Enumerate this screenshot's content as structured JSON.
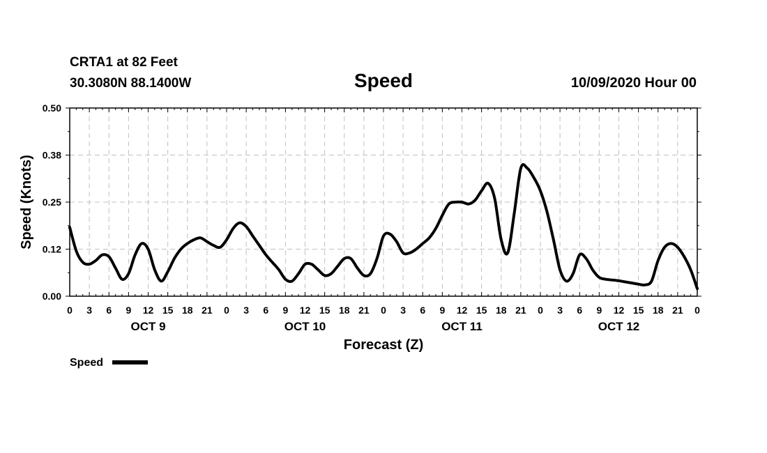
{
  "header": {
    "station": "CRTA1 at 82 Feet",
    "location": "30.3080N 88.1400W",
    "title": "Speed",
    "run": "10/09/2020 Hour 00"
  },
  "legend": {
    "label": "Speed"
  },
  "colors": {
    "line": "#000000",
    "grid": "#c0c0c0",
    "background": "#ffffff"
  },
  "chart_data": {
    "type": "line",
    "title": "Speed",
    "xlabel": "Forecast (Z)",
    "ylabel": "Speed (Knots)",
    "xlim": [
      0,
      96
    ],
    "ylim": [
      0,
      0.5
    ],
    "grid": true,
    "legend_position": "bottom-left",
    "y_ticks": [
      {
        "value": 0.0,
        "label": "0.00"
      },
      {
        "value": 0.125,
        "label": "0.12"
      },
      {
        "value": 0.25,
        "label": "0.25"
      },
      {
        "value": 0.375,
        "label": "0.38"
      },
      {
        "value": 0.5,
        "label": "0.50"
      }
    ],
    "x_ticks": [
      {
        "value": 0,
        "label": "0"
      },
      {
        "value": 3,
        "label": "3"
      },
      {
        "value": 6,
        "label": "6"
      },
      {
        "value": 9,
        "label": "9"
      },
      {
        "value": 12,
        "label": "12"
      },
      {
        "value": 15,
        "label": "15"
      },
      {
        "value": 18,
        "label": "18"
      },
      {
        "value": 21,
        "label": "21"
      },
      {
        "value": 24,
        "label": "0"
      },
      {
        "value": 27,
        "label": "3"
      },
      {
        "value": 30,
        "label": "6"
      },
      {
        "value": 33,
        "label": "9"
      },
      {
        "value": 36,
        "label": "12"
      },
      {
        "value": 39,
        "label": "15"
      },
      {
        "value": 42,
        "label": "18"
      },
      {
        "value": 45,
        "label": "21"
      },
      {
        "value": 48,
        "label": "0"
      },
      {
        "value": 51,
        "label": "3"
      },
      {
        "value": 54,
        "label": "6"
      },
      {
        "value": 57,
        "label": "9"
      },
      {
        "value": 60,
        "label": "12"
      },
      {
        "value": 63,
        "label": "15"
      },
      {
        "value": 66,
        "label": "18"
      },
      {
        "value": 69,
        "label": "21"
      },
      {
        "value": 72,
        "label": "0"
      },
      {
        "value": 75,
        "label": "3"
      },
      {
        "value": 78,
        "label": "6"
      },
      {
        "value": 81,
        "label": "9"
      },
      {
        "value": 84,
        "label": "12"
      },
      {
        "value": 87,
        "label": "15"
      },
      {
        "value": 90,
        "label": "18"
      },
      {
        "value": 93,
        "label": "21"
      },
      {
        "value": 96,
        "label": "0"
      }
    ],
    "day_labels": [
      {
        "value": 12,
        "label": "OCT 9"
      },
      {
        "value": 36,
        "label": "OCT 10"
      },
      {
        "value": 60,
        "label": "OCT 11"
      },
      {
        "value": 84,
        "label": "OCT 12"
      }
    ],
    "series": [
      {
        "name": "Speed",
        "x": [
          0,
          1,
          2,
          3,
          4,
          5,
          6,
          7,
          8,
          9,
          10,
          11,
          12,
          13,
          14,
          15,
          16,
          17,
          18,
          19,
          20,
          21,
          22,
          23,
          24,
          25,
          26,
          27,
          28,
          29,
          30,
          31,
          32,
          33,
          34,
          35,
          36,
          37,
          38,
          39,
          40,
          41,
          42,
          43,
          44,
          45,
          46,
          47,
          48,
          49,
          50,
          51,
          52,
          53,
          54,
          55,
          56,
          57,
          58,
          59,
          60,
          61,
          62,
          63,
          64,
          65,
          66,
          67,
          68,
          69,
          70,
          71,
          72,
          73,
          74,
          75,
          76,
          77,
          78,
          79,
          80,
          81,
          82,
          83,
          84,
          85,
          86,
          87,
          88,
          89,
          90,
          91,
          92,
          93,
          94,
          95,
          96
        ],
        "values": [
          0.183,
          0.12,
          0.09,
          0.085,
          0.095,
          0.11,
          0.105,
          0.075,
          0.045,
          0.06,
          0.11,
          0.14,
          0.125,
          0.07,
          0.04,
          0.065,
          0.1,
          0.125,
          0.14,
          0.15,
          0.155,
          0.145,
          0.135,
          0.13,
          0.15,
          0.18,
          0.195,
          0.185,
          0.16,
          0.135,
          0.11,
          0.09,
          0.07,
          0.045,
          0.04,
          0.06,
          0.085,
          0.085,
          0.07,
          0.055,
          0.06,
          0.08,
          0.1,
          0.1,
          0.075,
          0.055,
          0.06,
          0.1,
          0.16,
          0.165,
          0.145,
          0.115,
          0.115,
          0.125,
          0.14,
          0.155,
          0.18,
          0.215,
          0.245,
          0.25,
          0.25,
          0.245,
          0.255,
          0.28,
          0.3,
          0.26,
          0.15,
          0.115,
          0.22,
          0.34,
          0.34,
          0.315,
          0.28,
          0.225,
          0.15,
          0.07,
          0.04,
          0.06,
          0.11,
          0.1,
          0.07,
          0.05,
          0.045,
          0.043,
          0.041,
          0.038,
          0.035,
          0.032,
          0.03,
          0.04,
          0.095,
          0.13,
          0.14,
          0.13,
          0.105,
          0.07,
          0.02
        ]
      }
    ]
  }
}
